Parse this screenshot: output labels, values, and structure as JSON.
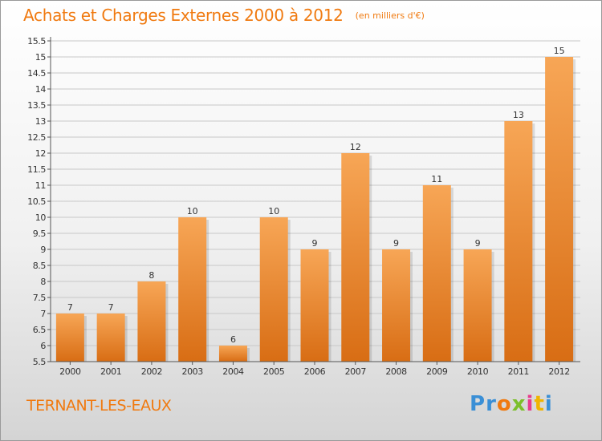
{
  "header": {
    "title": "Achats et Charges Externes 2000 à 2012",
    "unit": "(en milliers d'€)"
  },
  "footer": {
    "town": "TERNANT-LES-EAUX",
    "brand_letters": [
      "P",
      "r",
      "o",
      "x",
      "i",
      "t",
      "i"
    ],
    "brand_colors": [
      "#3a8fd6",
      "#3a8fd6",
      "#f07a10",
      "#7cbf2a",
      "#e83c8c",
      "#f0b400",
      "#3a8fd6"
    ]
  },
  "colors": {
    "accent": "#f07a10",
    "bar_top": "#f7a656",
    "bar_bottom": "#d86d14",
    "grid": "#c8c8c8"
  },
  "chart_data": {
    "type": "bar",
    "categories": [
      "2000",
      "2001",
      "2002",
      "2003",
      "2004",
      "2005",
      "2006",
      "2007",
      "2008",
      "2009",
      "2010",
      "2011",
      "2012"
    ],
    "values": [
      7,
      7,
      8,
      10,
      6,
      10,
      9,
      12,
      9,
      11,
      9,
      13,
      15
    ],
    "data_labels": [
      "7",
      "7",
      "8",
      "10",
      "6",
      "10",
      "9",
      "12",
      "9",
      "11",
      "9",
      "13",
      "15"
    ],
    "ylim": [
      5.5,
      15.5
    ],
    "yticks": [
      5.5,
      6,
      6.5,
      7,
      7.5,
      8,
      8.5,
      9,
      9.5,
      10,
      10.5,
      11,
      11.5,
      12,
      12.5,
      13,
      13.5,
      14,
      14.5,
      15,
      15.5
    ],
    "ytick_labels": [
      "5.5",
      "6",
      "6.5",
      "7",
      "7.5",
      "8",
      "8.5",
      "9",
      "9.5",
      "10",
      "10.5",
      "11",
      "11.5",
      "12",
      "12.5",
      "13",
      "13.5",
      "14",
      "14.5",
      "15",
      "15.5"
    ],
    "xlabel": "",
    "ylabel": "",
    "grid": true,
    "legend": "none"
  }
}
